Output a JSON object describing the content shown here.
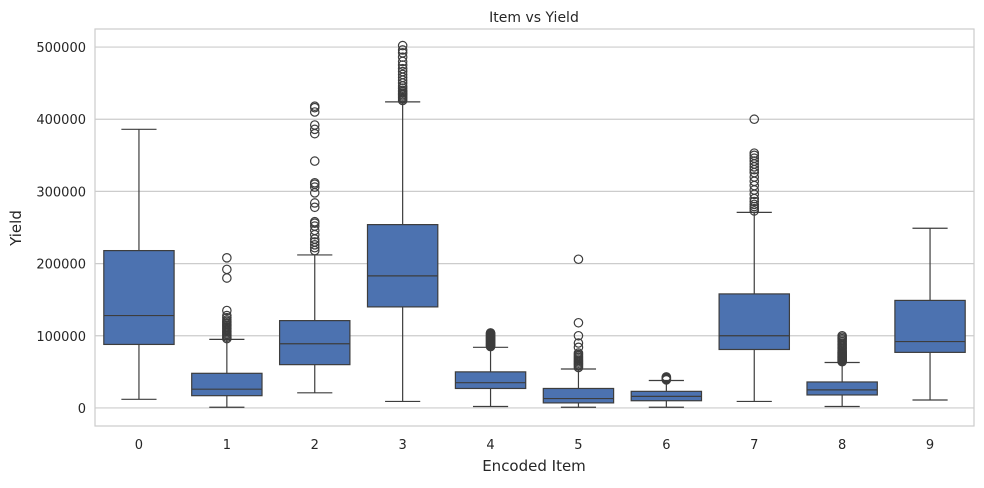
{
  "chart_data": {
    "type": "box",
    "title": "Item vs Yield",
    "xlabel": "Encoded Item",
    "ylabel": "Yield",
    "ylim": [
      -25000,
      525000
    ],
    "yticks": [
      0,
      100000,
      200000,
      300000,
      400000,
      500000
    ],
    "ytick_labels": [
      "0",
      "100000",
      "200000",
      "300000",
      "400000",
      "500000"
    ],
    "grid": "y",
    "box_color": "#4c72b0",
    "edge_color": "#3d3d3d",
    "categories": [
      "0",
      "1",
      "2",
      "3",
      "4",
      "5",
      "6",
      "7",
      "8",
      "9"
    ],
    "boxes": [
      {
        "category": "0",
        "whislo": 12000,
        "q1": 88000,
        "med": 128000,
        "q3": 218000,
        "whishi": 386000,
        "fliers": []
      },
      {
        "category": "1",
        "whislo": 1000,
        "q1": 17000,
        "med": 26000,
        "q3": 48000,
        "whishi": 95000,
        "fliers": [
          96000,
          98000,
          100000,
          102000,
          104000,
          106000,
          108000,
          110000,
          112000,
          114000,
          116000,
          118000,
          120000,
          122000,
          125000,
          128000,
          135000,
          180000,
          192000,
          208000
        ]
      },
      {
        "category": "2",
        "whislo": 21000,
        "q1": 60000,
        "med": 89000,
        "q3": 121000,
        "whishi": 212000,
        "fliers": [
          218000,
          222000,
          226000,
          230000,
          234000,
          240000,
          246000,
          252000,
          256000,
          258000,
          278000,
          284000,
          298000,
          306000,
          310000,
          312000,
          342000,
          380000,
          386000,
          392000,
          410000,
          416000,
          418000
        ]
      },
      {
        "category": "3",
        "whislo": 9000,
        "q1": 140000,
        "med": 183000,
        "q3": 254000,
        "whishi": 424000,
        "fliers": [
          426000,
          428000,
          430000,
          432000,
          434000,
          436000,
          438000,
          440000,
          443000,
          446000,
          450000,
          454000,
          458000,
          462000,
          466000,
          470000,
          475000,
          480000,
          486000,
          492000,
          496000,
          502000
        ]
      },
      {
        "category": "4",
        "whislo": 2000,
        "q1": 27000,
        "med": 35000,
        "q3": 50000,
        "whishi": 84000,
        "fliers": [
          85000,
          86000,
          87000,
          88000,
          89000,
          90000,
          91000,
          92000,
          93000,
          94000,
          95000,
          96000,
          97000,
          98000,
          99000,
          100000,
          101000,
          102000,
          103000,
          104000
        ]
      },
      {
        "category": "5",
        "whislo": 1000,
        "q1": 7000,
        "med": 13000,
        "q3": 27000,
        "whishi": 54000,
        "fliers": [
          56000,
          58000,
          60000,
          62000,
          64000,
          66000,
          68000,
          70000,
          72000,
          74000,
          76000,
          84000,
          90000,
          100000,
          118000,
          206000
        ]
      },
      {
        "category": "6",
        "whislo": 1000,
        "q1": 10000,
        "med": 16000,
        "q3": 23000,
        "whishi": 38000,
        "fliers": [
          39000,
          40000,
          41000,
          42000,
          43000
        ]
      },
      {
        "category": "7",
        "whislo": 9000,
        "q1": 81000,
        "med": 100000,
        "q3": 158000,
        "whishi": 271000,
        "fliers": [
          273000,
          276000,
          279000,
          282000,
          286000,
          290000,
          296000,
          302000,
          308000,
          314000,
          320000,
          326000,
          330000,
          334000,
          338000,
          342000,
          346000,
          350000,
          353000,
          400000
        ]
      },
      {
        "category": "8",
        "whislo": 2000,
        "q1": 18000,
        "med": 25000,
        "q3": 36000,
        "whishi": 63000,
        "fliers": [
          64000,
          65000,
          66000,
          67000,
          68000,
          69000,
          70000,
          71000,
          72000,
          73000,
          74000,
          75000,
          76000,
          77000,
          78000,
          80000,
          82000,
          84000,
          86000,
          88000,
          90000,
          92000,
          94000,
          96000,
          98000,
          100000
        ]
      },
      {
        "category": "9",
        "whislo": 11000,
        "q1": 77000,
        "med": 92000,
        "q3": 149000,
        "whishi": 249000,
        "fliers": []
      }
    ]
  }
}
